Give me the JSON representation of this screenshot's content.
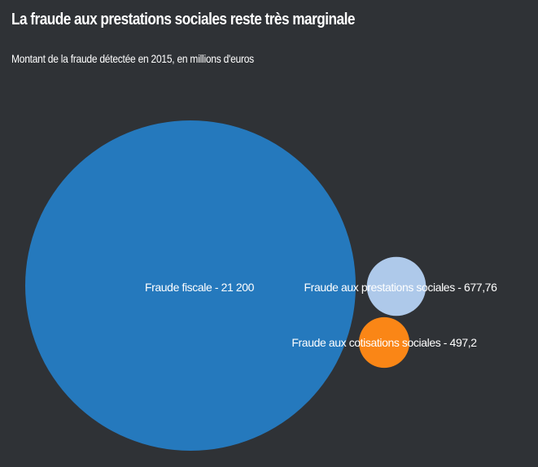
{
  "title": "La fraude aux prestations sociales reste très marginale",
  "subtitle": "Montant de la fraude détectée en 2015, en millions d'euros",
  "chart_data": {
    "type": "bubble",
    "title": "La fraude aux prestations sociales reste très marginale",
    "subtitle": "Montant de la fraude détectée en 2015, en millions d'euros",
    "unit": "millions d'euros",
    "legend": "none",
    "series": [
      {
        "name": "Fraude fiscale",
        "value": 21200,
        "label": "Fraude fiscale - 21 200",
        "color": "#2579bd"
      },
      {
        "name": "Fraude aux prestations sociales",
        "value": 677.76,
        "label": "Fraude aux prestations sociales - 677,76",
        "color": "#aec9ea"
      },
      {
        "name": "Fraude aux cotisations sociales",
        "value": 497.2,
        "label": "Fraude aux cotisations sociales - 497,2",
        "color": "#fa8616"
      }
    ]
  },
  "colors": {
    "background": "#2f3236",
    "text": "#ffffff"
  }
}
